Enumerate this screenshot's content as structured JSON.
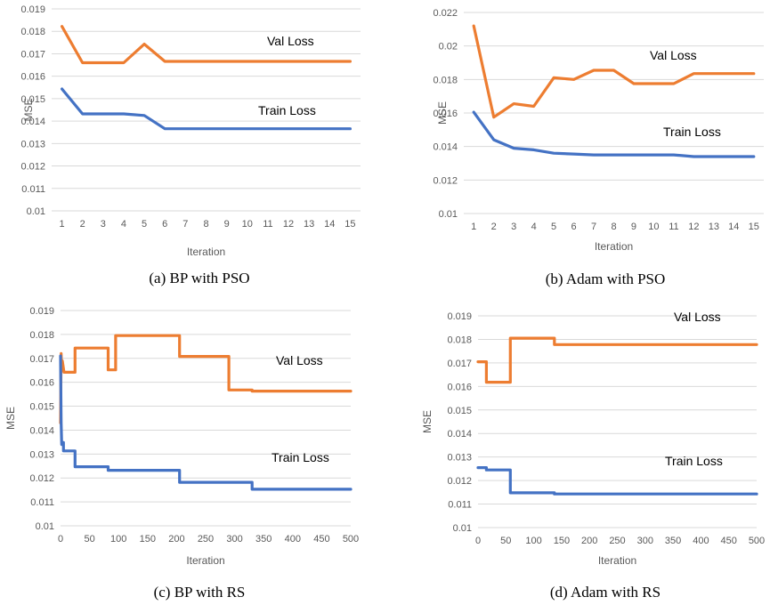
{
  "colors": {
    "val": "#ed7d31",
    "train": "#4472c4",
    "grid": "#d9d9d9"
  },
  "chart_data": [
    {
      "type": "line",
      "caption": "(a) BP with PSO",
      "xlabel": "Iteration",
      "ylabel": "MSE",
      "ylim": [
        0.01,
        0.019
      ],
      "yticks": [
        0.01,
        0.011,
        0.012,
        0.013,
        0.014,
        0.015,
        0.016,
        0.017,
        0.018,
        0.019
      ],
      "ytick_labels": [
        "0.01",
        "0.011",
        "0.012",
        "0.013",
        "0.014",
        "0.015",
        "0.016",
        "0.017",
        "0.018",
        "0.019"
      ],
      "xaxis": "category",
      "categories": [
        "1",
        "2",
        "3",
        "4",
        "5",
        "6",
        "7",
        "8",
        "9",
        "10",
        "11",
        "12",
        "13",
        "14",
        "15"
      ],
      "grid": true,
      "series": [
        {
          "name": "Val Loss",
          "values": [
            0.01822,
            0.0166,
            0.0166,
            0.0166,
            0.01743,
            0.01666,
            0.01666,
            0.01666,
            0.01666,
            0.01666,
            0.01666,
            0.01666,
            0.01666,
            0.01666,
            0.01666
          ]
        },
        {
          "name": "Train Loss",
          "values": [
            0.01543,
            0.01432,
            0.01432,
            0.01432,
            0.01425,
            0.01366,
            0.01366,
            0.01366,
            0.01366,
            0.01366,
            0.01366,
            0.01366,
            0.01366,
            0.01366,
            0.01366
          ]
        }
      ]
    },
    {
      "type": "line",
      "caption": "(b) Adam with PSO",
      "xlabel": "Iteration",
      "ylabel": "MSE",
      "ylim": [
        0.01,
        0.022
      ],
      "yticks": [
        0.01,
        0.012,
        0.014,
        0.016,
        0.018,
        0.02,
        0.022
      ],
      "ytick_labels": [
        "0.01",
        "0.012",
        "0.014",
        "0.016",
        "0.018",
        "0.02",
        "0.022"
      ],
      "xaxis": "category",
      "categories": [
        "1",
        "2",
        "3",
        "4",
        "5",
        "6",
        "7",
        "8",
        "9",
        "10",
        "11",
        "12",
        "13",
        "14",
        "15"
      ],
      "grid": true,
      "series": [
        {
          "name": "Val Loss",
          "values": [
            0.0212,
            0.01575,
            0.01655,
            0.0164,
            0.0181,
            0.018,
            0.01855,
            0.01855,
            0.01775,
            0.01775,
            0.01775,
            0.01835,
            0.01835,
            0.01835,
            0.01835
          ]
        },
        {
          "name": "Train Loss",
          "values": [
            0.01605,
            0.0144,
            0.0139,
            0.0138,
            0.0136,
            0.01355,
            0.0135,
            0.0135,
            0.0135,
            0.0135,
            0.0135,
            0.0134,
            0.0134,
            0.0134,
            0.0134
          ]
        }
      ]
    },
    {
      "type": "line",
      "caption": "(c) BP with RS",
      "xlabel": "Iteration",
      "ylabel": "MSE",
      "ylim": [
        0.01,
        0.019
      ],
      "yticks": [
        0.01,
        0.011,
        0.012,
        0.013,
        0.014,
        0.015,
        0.016,
        0.017,
        0.018,
        0.019
      ],
      "ytick_labels": [
        "0.01",
        "0.011",
        "0.012",
        "0.013",
        "0.014",
        "0.015",
        "0.016",
        "0.017",
        "0.018",
        "0.019"
      ],
      "xaxis": "linear",
      "xlim": [
        0,
        500
      ],
      "xticks": [
        0,
        50,
        100,
        150,
        200,
        250,
        300,
        350,
        400,
        450,
        500
      ],
      "grid": true,
      "series": [
        {
          "name": "Val Loss",
          "x": [
            0,
            1,
            2,
            3,
            6,
            25,
            25,
            82,
            82,
            95,
            95,
            205,
            205,
            290,
            290,
            330,
            330,
            500
          ],
          "values": [
            0.0143,
            0.0172,
            0.0165,
            0.0169,
            0.01642,
            0.01642,
            0.01743,
            0.01743,
            0.01652,
            0.01652,
            0.01795,
            0.01795,
            0.01708,
            0.01708,
            0.01568,
            0.01568,
            0.01563,
            0.01563
          ]
        },
        {
          "name": "Train Loss",
          "x": [
            0,
            1,
            2,
            3,
            5,
            5,
            25,
            25,
            82,
            82,
            205,
            205,
            330,
            330,
            500
          ],
          "values": [
            0.0171,
            0.0143,
            0.0134,
            0.01348,
            0.01348,
            0.01313,
            0.01313,
            0.01247,
            0.01247,
            0.01232,
            0.01232,
            0.01182,
            0.01182,
            0.01153,
            0.01153
          ]
        }
      ]
    },
    {
      "type": "line",
      "caption": "(d) Adam with RS",
      "xlabel": "Iteration",
      "ylabel": "MSE",
      "ylim": [
        0.01,
        0.019
      ],
      "yticks": [
        0.01,
        0.011,
        0.012,
        0.013,
        0.014,
        0.015,
        0.016,
        0.017,
        0.018,
        0.019
      ],
      "ytick_labels": [
        "0.01",
        "0.011",
        "0.012",
        "0.013",
        "0.014",
        "0.015",
        "0.016",
        "0.017",
        "0.018",
        "0.019"
      ],
      "xaxis": "linear",
      "xlim": [
        0,
        500
      ],
      "xticks": [
        0,
        50,
        100,
        150,
        200,
        250,
        300,
        350,
        400,
        450,
        500
      ],
      "grid": true,
      "series": [
        {
          "name": "Val Loss",
          "x": [
            0,
            15,
            15,
            58,
            58,
            137,
            137,
            500
          ],
          "values": [
            0.01705,
            0.01705,
            0.01618,
            0.01618,
            0.01805,
            0.01805,
            0.01778,
            0.01778
          ]
        },
        {
          "name": "Train Loss",
          "x": [
            0,
            15,
            15,
            58,
            58,
            137,
            137,
            500
          ],
          "values": [
            0.01255,
            0.01255,
            0.01245,
            0.01245,
            0.01148,
            0.01148,
            0.01143,
            0.01143
          ]
        }
      ]
    }
  ]
}
